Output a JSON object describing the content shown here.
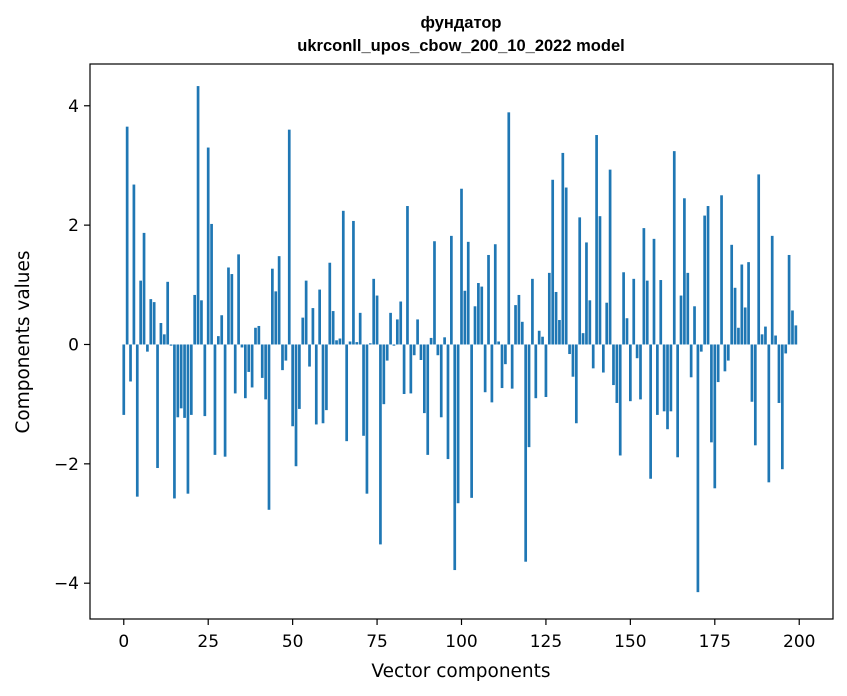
{
  "chart_data": {
    "type": "bar",
    "title": "фундатор",
    "subtitle": "ukrconll_upos_cbow_200_10_2022 model",
    "xlabel": "Vector components",
    "ylabel": "Components values",
    "xlim": [
      -10,
      210
    ],
    "ylim": [
      -4.6,
      4.7
    ],
    "xticks": [
      0,
      25,
      50,
      75,
      100,
      125,
      150,
      175,
      200
    ],
    "yticks": [
      -4,
      -2,
      0,
      2,
      4
    ],
    "ytick_labels": [
      "−4",
      "−2",
      "0",
      "2",
      "4"
    ],
    "bar_color": "#1f77b4",
    "grid": false,
    "values": [
      -1.18,
      3.65,
      -0.62,
      2.68,
      -2.55,
      1.07,
      1.87,
      -0.12,
      0.76,
      0.71,
      -2.07,
      0.36,
      0.17,
      1.05,
      -0.02,
      -2.58,
      -1.22,
      -1.07,
      -1.23,
      -2.5,
      -1.18,
      0.83,
      4.33,
      0.74,
      -1.2,
      3.3,
      2.02,
      -1.85,
      0.14,
      0.49,
      -1.88,
      1.29,
      1.18,
      -0.82,
      1.51,
      -0.05,
      -0.9,
      -0.46,
      -0.72,
      0.28,
      0.31,
      -0.56,
      -0.92,
      -2.77,
      1.27,
      0.89,
      1.48,
      -0.43,
      -0.27,
      3.6,
      -1.37,
      -2.04,
      -1.08,
      0.45,
      1.07,
      -0.37,
      0.61,
      -1.34,
      0.92,
      -1.32,
      -1.1,
      1.37,
      0.56,
      0.07,
      0.1,
      2.24,
      -1.62,
      0.05,
      2.07,
      0.04,
      0.53,
      -1.53,
      -2.5,
      0.02,
      1.1,
      0.82,
      -3.35,
      -1.0,
      -0.27,
      0.53,
      -0.02,
      0.42,
      0.72,
      -0.83,
      2.32,
      -0.82,
      -0.18,
      0.42,
      -0.26,
      -1.15,
      -1.85,
      0.11,
      1.73,
      -0.18,
      -1.22,
      0.12,
      -1.92,
      1.82,
      -3.78,
      -2.66,
      2.61,
      0.9,
      1.72,
      -2.57,
      0.64,
      1.03,
      0.97,
      -0.8,
      1.5,
      -0.97,
      1.68,
      0.05,
      -0.73,
      -0.33,
      3.89,
      -0.74,
      0.66,
      0.83,
      0.38,
      -3.64,
      -1.72,
      1.1,
      -0.9,
      0.23,
      0.13,
      -0.88,
      1.2,
      2.76,
      0.88,
      0.41,
      3.21,
      2.63,
      -0.16,
      -0.54,
      -1.32,
      2.13,
      0.19,
      1.71,
      0.74,
      -0.4,
      3.51,
      2.15,
      -0.47,
      0.7,
      2.93,
      -0.68,
      -0.98,
      -1.86,
      1.21,
      0.44,
      -0.95,
      1.1,
      -0.23,
      -0.92,
      1.95,
      1.07,
      -2.25,
      1.77,
      -1.18,
      1.08,
      -1.12,
      -1.42,
      -1.12,
      3.24,
      -1.89,
      0.82,
      2.45,
      1.2,
      -0.55,
      0.64,
      -4.15,
      -0.12,
      2.16,
      2.32,
      -1.64,
      -2.41,
      -0.63,
      2.5,
      -0.45,
      -0.27,
      1.67,
      0.95,
      0.28,
      1.34,
      0.62,
      1.38,
      -0.96,
      -1.69,
      2.85,
      0.17,
      0.3,
      -2.31,
      1.82,
      0.15,
      -0.98,
      -2.09,
      -0.15,
      1.5,
      0.57,
      0.32
    ]
  }
}
